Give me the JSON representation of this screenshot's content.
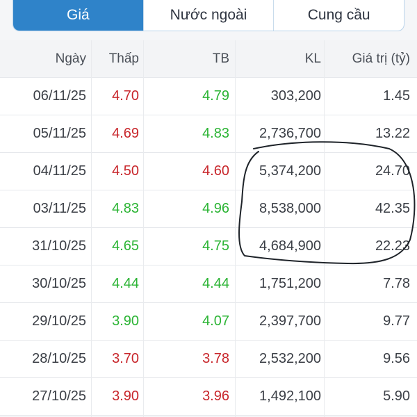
{
  "tabs": [
    {
      "label": "Giá",
      "active": true
    },
    {
      "label": "Nước ngoài",
      "active": false
    },
    {
      "label": "Cung cầu",
      "active": false
    }
  ],
  "columns": {
    "date": "Ngày",
    "low": "Thấp",
    "avg": "TB",
    "volume": "KL",
    "value": "Giá trị (tỷ)"
  },
  "colors": {
    "accent": "#2f83c9",
    "up": "#2bb434",
    "down": "#c8262b"
  },
  "rows": [
    {
      "date": "06/11/25",
      "low": "4.70",
      "low_dir": "down",
      "avg": "4.79",
      "avg_dir": "up",
      "volume": "303,200",
      "value": "1.45"
    },
    {
      "date": "05/11/25",
      "low": "4.69",
      "low_dir": "down",
      "avg": "4.83",
      "avg_dir": "up",
      "volume": "2,736,700",
      "value": "13.22"
    },
    {
      "date": "04/11/25",
      "low": "4.50",
      "low_dir": "down",
      "avg": "4.60",
      "avg_dir": "down",
      "volume": "5,374,200",
      "value": "24.70"
    },
    {
      "date": "03/11/25",
      "low": "4.83",
      "low_dir": "up",
      "avg": "4.96",
      "avg_dir": "up",
      "volume": "8,538,000",
      "value": "42.35"
    },
    {
      "date": "31/10/25",
      "low": "4.65",
      "low_dir": "up",
      "avg": "4.75",
      "avg_dir": "up",
      "volume": "4,684,900",
      "value": "22.23"
    },
    {
      "date": "30/10/25",
      "low": "4.44",
      "low_dir": "up",
      "avg": "4.44",
      "avg_dir": "up",
      "volume": "1,751,200",
      "value": "7.78"
    },
    {
      "date": "29/10/25",
      "low": "3.90",
      "low_dir": "up",
      "avg": "4.07",
      "avg_dir": "up",
      "volume": "2,397,700",
      "value": "9.77"
    },
    {
      "date": "28/10/25",
      "low": "3.70",
      "low_dir": "down",
      "avg": "3.78",
      "avg_dir": "down",
      "volume": "2,532,200",
      "value": "9.56"
    },
    {
      "date": "27/10/25",
      "low": "3.90",
      "low_dir": "down",
      "avg": "3.96",
      "avg_dir": "down",
      "volume": "1,492,100",
      "value": "5.90"
    }
  ]
}
